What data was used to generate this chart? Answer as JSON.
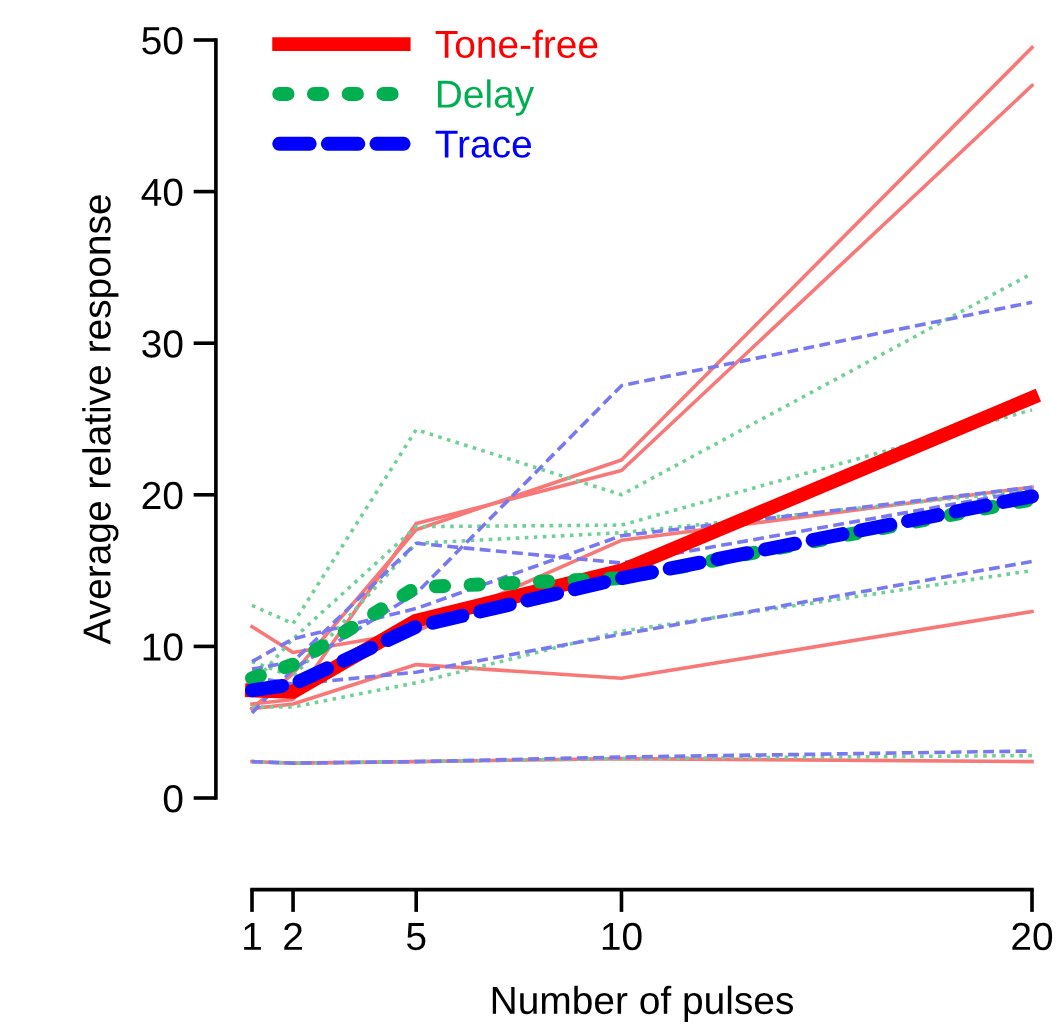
{
  "chart_data": {
    "type": "line",
    "xlabel": "Number of pulses",
    "ylabel": "Average relative response",
    "x": [
      1,
      2,
      5,
      10,
      20
    ],
    "xlim": [
      1,
      20
    ],
    "xticks": [
      1,
      2,
      5,
      10,
      20
    ],
    "ylim": [
      0,
      50
    ],
    "yticks": [
      0,
      10,
      20,
      30,
      40,
      50
    ],
    "grid": false,
    "legend": "top left",
    "marker": "none",
    "series": [
      {
        "color": "#f87878",
        "line_style": "solid",
        "values": [
          5.9,
          8.2,
          17.7,
          22.3,
          49.5
        ]
      },
      {
        "color": "#f87878",
        "line_style": "solid",
        "values": [
          6.2,
          6.5,
          18.1,
          21.6,
          47.0
        ]
      },
      {
        "color": "#f87878",
        "line_style": "solid",
        "values": [
          11.3,
          9.6,
          11.0,
          17.0,
          20.5
        ]
      },
      {
        "color": "#f87878",
        "line_style": "solid",
        "values": [
          5.9,
          6.2,
          8.8,
          7.9,
          12.3
        ]
      },
      {
        "color": "#f87878",
        "line_style": "solid",
        "values": [
          2.4,
          2.3,
          2.4,
          2.6,
          2.4
        ]
      },
      {
        "color": "#70d098",
        "line_style": "dotted",
        "values": [
          12.7,
          11.5,
          24.3,
          20.0,
          34.6
        ]
      },
      {
        "color": "#70d098",
        "line_style": "dotted",
        "values": [
          7.5,
          10.5,
          17.9,
          18.0,
          25.6
        ]
      },
      {
        "color": "#70d098",
        "line_style": "dotted",
        "values": [
          9.0,
          8.0,
          16.8,
          17.5,
          20.3
        ]
      },
      {
        "color": "#70d098",
        "line_style": "dotted",
        "values": [
          6.0,
          6.0,
          7.6,
          11.0,
          15.0
        ]
      },
      {
        "color": "#70d098",
        "line_style": "dotted",
        "values": [
          2.4,
          2.3,
          2.4,
          2.6,
          2.8
        ]
      },
      {
        "color": "#7878f0",
        "line_style": "dashed",
        "values": [
          5.6,
          8.5,
          13.5,
          27.2,
          32.7
        ]
      },
      {
        "color": "#7878f0",
        "line_style": "dashed",
        "values": [
          8.5,
          9.0,
          16.8,
          15.5,
          20.3
        ]
      },
      {
        "color": "#7878f0",
        "line_style": "dashed",
        "values": [
          9.0,
          10.5,
          12.5,
          17.3,
          20.5
        ]
      },
      {
        "color": "#7878f0",
        "line_style": "dashed",
        "values": [
          8.0,
          7.5,
          8.3,
          10.8,
          15.6
        ]
      },
      {
        "color": "#7878f0",
        "line_style": "dashed",
        "values": [
          2.4,
          2.3,
          2.4,
          2.7,
          3.1
        ]
      },
      {
        "name": "Tone-free",
        "color": "#ff0000",
        "line_style": "solid",
        "values": [
          7.1,
          7.0,
          11.7,
          15.0,
          26.4
        ]
      },
      {
        "name": "Delay",
        "color": "#00b050",
        "line_style": "dotted",
        "values": [
          7.9,
          8.8,
          13.9,
          14.5,
          19.7
        ]
      },
      {
        "name": "Trace",
        "color": "#0000ff",
        "line_style": "dashed",
        "values": [
          7.1,
          7.5,
          11.3,
          14.5,
          19.9
        ]
      }
    ]
  }
}
